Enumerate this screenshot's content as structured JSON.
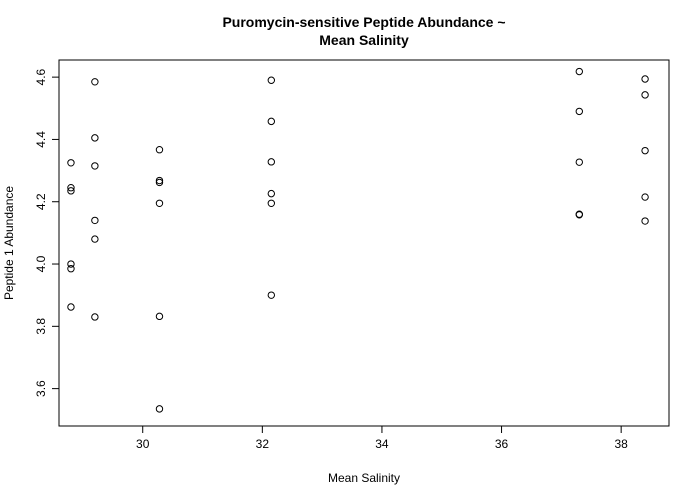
{
  "chart_data": {
    "type": "scatter",
    "title_lines": [
      "Puromycin-sensitive Peptide Abundance ~",
      "Mean Salinity"
    ],
    "xlabel": "Mean Salinity",
    "ylabel": "Peptide 1 Abundance",
    "xlim": [
      28.6,
      38.8
    ],
    "ylim": [
      3.48,
      4.655
    ],
    "xticks": [
      30,
      32,
      34,
      36,
      38
    ],
    "yticks": [
      3.6,
      3.8,
      4.0,
      4.2,
      4.4,
      4.6
    ],
    "xtick_labels": [
      "30",
      "32",
      "34",
      "36",
      "38"
    ],
    "ytick_labels": [
      "3.6",
      "3.8",
      "4.0",
      "4.2",
      "4.4",
      "4.6"
    ],
    "grid": false,
    "points": [
      {
        "x": 28.8,
        "y": 4.325
      },
      {
        "x": 28.8,
        "y": 4.245
      },
      {
        "x": 28.8,
        "y": 4.235
      },
      {
        "x": 28.8,
        "y": 4.0
      },
      {
        "x": 28.8,
        "y": 3.985
      },
      {
        "x": 28.8,
        "y": 3.862
      },
      {
        "x": 29.2,
        "y": 4.585
      },
      {
        "x": 29.2,
        "y": 4.405
      },
      {
        "x": 29.2,
        "y": 4.315
      },
      {
        "x": 29.2,
        "y": 4.14
      },
      {
        "x": 29.2,
        "y": 4.08
      },
      {
        "x": 29.2,
        "y": 3.83
      },
      {
        "x": 30.28,
        "y": 4.367
      },
      {
        "x": 30.28,
        "y": 4.268
      },
      {
        "x": 30.28,
        "y": 4.262
      },
      {
        "x": 30.28,
        "y": 4.195
      },
      {
        "x": 30.28,
        "y": 3.832
      },
      {
        "x": 30.28,
        "y": 3.535
      },
      {
        "x": 32.15,
        "y": 4.59
      },
      {
        "x": 32.15,
        "y": 4.458
      },
      {
        "x": 32.15,
        "y": 4.328
      },
      {
        "x": 32.15,
        "y": 4.226
      },
      {
        "x": 32.15,
        "y": 4.195
      },
      {
        "x": 32.15,
        "y": 3.9
      },
      {
        "x": 37.3,
        "y": 4.618
      },
      {
        "x": 37.3,
        "y": 4.49
      },
      {
        "x": 37.3,
        "y": 4.327
      },
      {
        "x": 37.3,
        "y": 4.16
      },
      {
        "x": 37.3,
        "y": 4.158
      },
      {
        "x": 38.4,
        "y": 4.594
      },
      {
        "x": 38.4,
        "y": 4.543
      },
      {
        "x": 38.4,
        "y": 4.364
      },
      {
        "x": 38.4,
        "y": 4.215
      },
      {
        "x": 38.4,
        "y": 4.138
      }
    ]
  }
}
